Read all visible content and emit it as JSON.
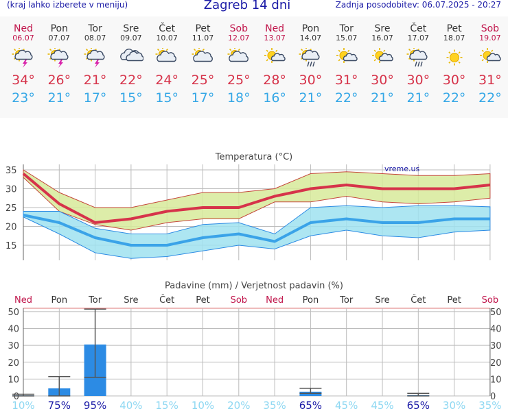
{
  "header": {
    "menu_hint": "(kraj lahko izberete v meniju)",
    "title": "Zagreb 14 dni",
    "updated": "Zadnja posodobitev: 06.07.2025 - 20:27"
  },
  "days": [
    {
      "name": "Ned",
      "date": "06.07",
      "weekend": true,
      "icon": "sun-cloud-lightning-icon",
      "tmax": "34°",
      "tmin": "23°"
    },
    {
      "name": "Pon",
      "date": "07.07",
      "weekend": false,
      "icon": "sun-cloud-lightning-icon",
      "tmax": "26°",
      "tmin": "21°"
    },
    {
      "name": "Tor",
      "date": "08.07",
      "weekend": false,
      "icon": "sun-cloud-lightning-icon",
      "tmax": "21°",
      "tmin": "17°"
    },
    {
      "name": "Sre",
      "date": "09.07",
      "weekend": false,
      "icon": "cloud-icon",
      "tmax": "22°",
      "tmin": "15°"
    },
    {
      "name": "Čet",
      "date": "10.07",
      "weekend": false,
      "icon": "sun-cloud-icon",
      "tmax": "24°",
      "tmin": "15°"
    },
    {
      "name": "Pet",
      "date": "11.07",
      "weekend": false,
      "icon": "sun-cloud-icon",
      "tmax": "25°",
      "tmin": "17°"
    },
    {
      "name": "Sob",
      "date": "12.07",
      "weekend": true,
      "icon": "sun-cloud-icon",
      "tmax": "25°",
      "tmin": "18°"
    },
    {
      "name": "Ned",
      "date": "13.07",
      "weekend": true,
      "icon": "sun-small-cloud-icon",
      "tmax": "28°",
      "tmin": "16°"
    },
    {
      "name": "Pon",
      "date": "14.07",
      "weekend": false,
      "icon": "sun-cloud-rain-icon",
      "tmax": "30°",
      "tmin": "21°"
    },
    {
      "name": "Tor",
      "date": "15.07",
      "weekend": false,
      "icon": "sun-small-cloud-icon",
      "tmax": "31°",
      "tmin": "22°"
    },
    {
      "name": "Sre",
      "date": "16.07",
      "weekend": false,
      "icon": "sun-small-cloud-icon",
      "tmax": "30°",
      "tmin": "21°"
    },
    {
      "name": "Čet",
      "date": "17.07",
      "weekend": false,
      "icon": "sun-cloud-rain-icon",
      "tmax": "30°",
      "tmin": "21°"
    },
    {
      "name": "Pet",
      "date": "18.07",
      "weekend": false,
      "icon": "sun-icon",
      "tmax": "30°",
      "tmin": "22°"
    },
    {
      "name": "Sob",
      "date": "19.07",
      "weekend": true,
      "icon": "sun-small-cloud-icon",
      "tmax": "31°",
      "tmin": "22°"
    }
  ],
  "colors": {
    "max_line": "#d6334a",
    "max_band": "#d7ea9a",
    "min_line": "#3aa3e8",
    "min_band": "#9fe2f0",
    "bar": "#2c8be4",
    "weekend_label": "#c0144a",
    "prob_low": "#8fd8f2",
    "prob_high": "#1a1aa6"
  },
  "chart_data": [
    {
      "type": "line",
      "title": "Temperatura (°C)",
      "watermark": "vreme.us",
      "ylim": [
        11,
        35
      ],
      "yticks": [
        15,
        20,
        25,
        30,
        35
      ],
      "x": [
        "06.07",
        "07.07",
        "08.07",
        "09.07",
        "10.07",
        "11.07",
        "12.07",
        "13.07",
        "14.07",
        "15.07",
        "16.07",
        "17.07",
        "18.07",
        "19.07"
      ],
      "series": [
        {
          "role": "max",
          "values": [
            34,
            26,
            21,
            22,
            24,
            25,
            25,
            28,
            30,
            31,
            30,
            30,
            30,
            31
          ]
        },
        {
          "role": "max_band_upper",
          "values": [
            35,
            29,
            25,
            25,
            27,
            29,
            29,
            30,
            34,
            34.5,
            34,
            33.5,
            33.5,
            34
          ]
        },
        {
          "role": "max_band_lower",
          "values": [
            33,
            24,
            20.5,
            19,
            21,
            22,
            22,
            26.5,
            26.5,
            28,
            26.5,
            26,
            26.5,
            27.5
          ]
        },
        {
          "role": "min",
          "values": [
            23,
            21,
            17,
            15,
            15,
            17,
            18,
            16,
            21,
            22,
            21,
            21,
            22,
            22
          ]
        },
        {
          "role": "min_band_upper",
          "values": [
            24,
            24,
            19.5,
            18,
            18,
            20.5,
            21,
            18,
            25,
            25.5,
            25,
            25.5,
            25.5,
            25.2
          ]
        },
        {
          "role": "min_band_lower",
          "values": [
            22.5,
            18,
            13,
            11.5,
            12,
            13.5,
            15,
            14,
            17.5,
            19,
            17.5,
            17,
            18.5,
            19
          ]
        }
      ]
    },
    {
      "type": "bar",
      "title": "Padavine (mm) / Verjetnost padavin (%)",
      "day_labels": [
        "Ned",
        "Pon",
        "Tor",
        "Sre",
        "Čet",
        "Pet",
        "Sob",
        "Ned",
        "Pon",
        "Tor",
        "Sre",
        "Čet",
        "Pet",
        "Sob"
      ],
      "weekend": [
        true,
        false,
        false,
        false,
        false,
        false,
        true,
        true,
        false,
        false,
        false,
        false,
        false,
        true
      ],
      "ylim": [
        0,
        52
      ],
      "yticks": [
        0,
        10,
        20,
        30,
        40,
        50
      ],
      "values": [
        0.3,
        4.5,
        30.5,
        0,
        0,
        0,
        0,
        0,
        2.5,
        0,
        0,
        0.5,
        0,
        0
      ],
      "range_low": [
        0,
        0,
        11,
        0,
        0,
        0,
        0,
        0,
        1.5,
        0,
        0,
        0,
        0,
        0
      ],
      "range_high": [
        1,
        11.5,
        51.5,
        0,
        0,
        0,
        0,
        0,
        4.5,
        0,
        0,
        1.5,
        0,
        0
      ],
      "probability": [
        "10%",
        "75%",
        "95%",
        "40%",
        "15%",
        "10%",
        "20%",
        "35%",
        "65%",
        "45%",
        "45%",
        "65%",
        "30%",
        "35%"
      ],
      "probability_values": [
        10,
        75,
        95,
        40,
        15,
        10,
        20,
        35,
        65,
        45,
        45,
        65,
        30,
        35
      ]
    }
  ]
}
